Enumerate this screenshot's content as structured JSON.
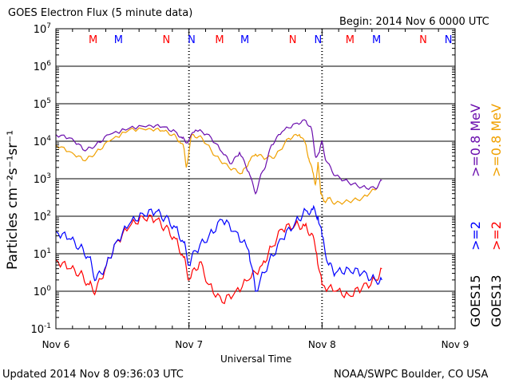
{
  "header": {
    "title": "GOES Electron Flux (5 minute data)",
    "begin": "Begin: 2014 Nov 6 0000 UTC"
  },
  "footer": {
    "updated": "Updated 2014 Nov  8 09:36:03 UTC",
    "credit": "NOAA/SWPC Boulder, CO USA"
  },
  "side_labels": {
    "s15_08": ">=0.8  MeV",
    "s13_08": ">=0.8  MeV",
    "s15_2": ">=2",
    "s13_2": ">=2",
    "sat15": "GOES15",
    "sat13": "GOES13"
  },
  "colors": {
    "goes15_08": "#6a0dad",
    "goes13_08": "#f0a000",
    "goes15_2": "#0000ff",
    "goes13_2": "#ff0000",
    "mn_red": "#ff0000",
    "mn_blue": "#0000ff"
  },
  "chart_data": {
    "type": "line",
    "title": "GOES Electron Flux (5 minute data)",
    "xlabel": "Universal Time",
    "ylabel": "Particles cm⁻²s⁻¹sr⁻¹",
    "yscale": "log",
    "ylim_exp": [
      -1,
      7
    ],
    "xlim_days": [
      0,
      3
    ],
    "ytick_exponents": [
      "7",
      "6",
      "5",
      "4",
      "3",
      "2",
      "1",
      "0",
      "-1"
    ],
    "xticks": [
      "Nov 6",
      "Nov 7",
      "Nov 8",
      "Nov 9"
    ],
    "threshold": 1000,
    "mn_markers": [
      {
        "label": "M",
        "t": 0.28,
        "color": "red"
      },
      {
        "label": "M",
        "t": 0.47,
        "color": "blue"
      },
      {
        "label": "N",
        "t": 0.83,
        "color": "red"
      },
      {
        "label": "N",
        "t": 1.02,
        "color": "blue"
      },
      {
        "label": "M",
        "t": 1.23,
        "color": "red"
      },
      {
        "label": "M",
        "t": 1.42,
        "color": "blue"
      },
      {
        "label": "N",
        "t": 1.78,
        "color": "red"
      },
      {
        "label": "N",
        "t": 1.97,
        "color": "blue"
      },
      {
        "label": "M",
        "t": 2.21,
        "color": "red"
      },
      {
        "label": "M",
        "t": 2.41,
        "color": "blue"
      },
      {
        "label": "N",
        "t": 2.76,
        "color": "red"
      },
      {
        "label": "N",
        "t": 2.95,
        "color": "blue"
      }
    ],
    "series": [
      {
        "name": "GOES15 >=0.8 MeV",
        "key": "goes15_08",
        "t": [
          0.0,
          0.12,
          0.22,
          0.3,
          0.4,
          0.55,
          0.7,
          0.8,
          0.9,
          0.95,
          0.98,
          1.05,
          1.15,
          1.25,
          1.32,
          1.38,
          1.45,
          1.5,
          1.55,
          1.58,
          1.62,
          1.7,
          1.8,
          1.88,
          1.92,
          1.95,
          1.98,
          2.0,
          2.03,
          2.1,
          2.2,
          2.3,
          2.4,
          2.45
        ],
        "v": [
          15000,
          12000,
          5500,
          8000,
          15000,
          22000,
          27000,
          24000,
          18000,
          12000,
          9000,
          20000,
          15000,
          5000,
          2500,
          5000,
          1500,
          400,
          1500,
          2500,
          8000,
          18000,
          30000,
          35000,
          22000,
          4000,
          5000,
          10000,
          3000,
          1200,
          800,
          600,
          550,
          900
        ]
      },
      {
        "name": "GOES13 >=0.8 MeV",
        "key": "goes13_08",
        "t": [
          0.0,
          0.12,
          0.22,
          0.3,
          0.4,
          0.55,
          0.7,
          0.8,
          0.88,
          0.93,
          0.96,
          0.98,
          1.02,
          1.1,
          1.2,
          1.3,
          1.4,
          1.45,
          1.5,
          1.58,
          1.65,
          1.75,
          1.83,
          1.88,
          1.9,
          1.93,
          1.95,
          1.97,
          1.99,
          2.02,
          2.05,
          2.1,
          2.2,
          2.3,
          2.42
        ],
        "v": [
          8000,
          5000,
          3000,
          5000,
          10000,
          20000,
          22000,
          19000,
          15000,
          10000,
          7000,
          2000,
          15000,
          12000,
          4000,
          2000,
          1400,
          2800,
          4500,
          3500,
          4000,
          12000,
          15000,
          8000,
          3500,
          1500,
          700,
          2800,
          400,
          250,
          300,
          220,
          250,
          300,
          600
        ]
      },
      {
        "name": "GOES15 >=2 MeV",
        "key": "goes15_2",
        "t": [
          0.0,
          0.1,
          0.18,
          0.25,
          0.3,
          0.38,
          0.45,
          0.55,
          0.65,
          0.75,
          0.82,
          0.9,
          0.96,
          1.0,
          1.05,
          1.15,
          1.25,
          1.35,
          1.45,
          1.5,
          1.6,
          1.7,
          1.8,
          1.88,
          1.93,
          1.97,
          2.0,
          2.05,
          2.1,
          2.2,
          2.3,
          2.4,
          2.45
        ],
        "v": [
          40,
          25,
          15,
          8,
          2,
          5,
          20,
          60,
          120,
          130,
          90,
          50,
          20,
          5,
          12,
          30,
          80,
          40,
          12,
          1,
          6,
          25,
          70,
          140,
          150,
          100,
          30,
          5,
          3,
          4,
          3,
          2,
          2
        ]
      },
      {
        "name": "GOES13 >=2 MeV",
        "key": "goes13_2",
        "t": [
          0.0,
          0.1,
          0.18,
          0.25,
          0.3,
          0.38,
          0.45,
          0.55,
          0.65,
          0.75,
          0.82,
          0.9,
          0.96,
          1.0,
          1.08,
          1.15,
          1.25,
          1.35,
          1.45,
          1.55,
          1.62,
          1.7,
          1.8,
          1.87,
          1.92,
          1.96,
          2.0,
          2.1,
          2.2,
          2.3,
          2.4,
          2.45
        ],
        "v": [
          7,
          4,
          3,
          1.5,
          1,
          5,
          20,
          50,
          100,
          80,
          50,
          25,
          8,
          2,
          6,
          1.5,
          0.5,
          1,
          2,
          5,
          15,
          45,
          60,
          55,
          35,
          10,
          1.5,
          1,
          0.8,
          1.2,
          2,
          4
        ]
      }
    ]
  }
}
